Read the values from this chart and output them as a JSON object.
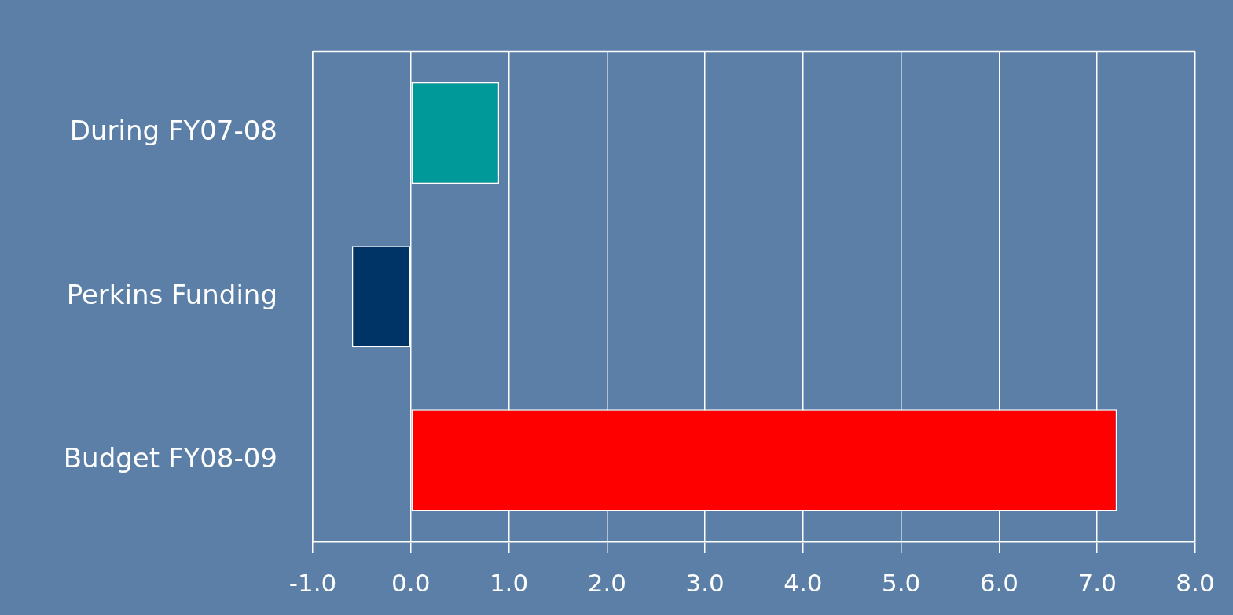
{
  "chart_data": {
    "type": "bar",
    "orientation": "horizontal",
    "categories": [
      "During FY07-08",
      "Perkins Funding",
      "Budget FY08-09"
    ],
    "values": [
      0.9,
      -0.6,
      7.2
    ],
    "colors": [
      "#009999",
      "#003366",
      "#ff0000"
    ],
    "xlim": [
      -1,
      8
    ],
    "xticks": [
      {
        "value": -1,
        "label": "-1.0"
      },
      {
        "value": 0,
        "label": "0.0"
      },
      {
        "value": 1,
        "label": "1.0"
      },
      {
        "value": 2,
        "label": "2.0"
      },
      {
        "value": 3,
        "label": "3.0"
      },
      {
        "value": 4,
        "label": "4.0"
      },
      {
        "value": 5,
        "label": "5.0"
      },
      {
        "value": 6,
        "label": "6.0"
      },
      {
        "value": 7,
        "label": "7.0"
      },
      {
        "value": 8,
        "label": "8.0"
      }
    ],
    "grid": "x",
    "legend": false
  }
}
